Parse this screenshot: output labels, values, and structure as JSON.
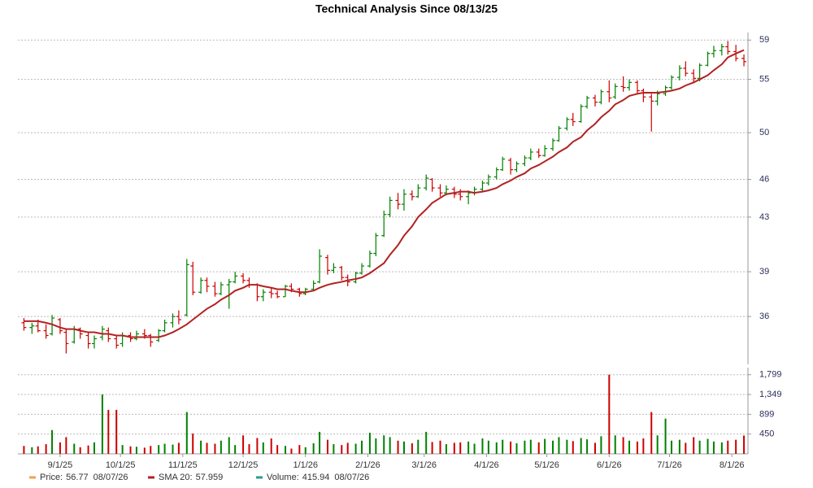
{
  "chart_data": {
    "type": "ohlc",
    "title": "Technical Analysis Since 08/13/25",
    "x": [
      "8/14/25",
      "8/18/25",
      "8/21/25",
      "8/25/25",
      "8/28/25",
      "9/1/25",
      "9/4/25",
      "9/8/25",
      "9/11/25",
      "9/15/25",
      "9/18/25",
      "9/22/25",
      "9/25/25",
      "9/29/25",
      "10/2/25",
      "10/6/25",
      "10/9/25",
      "10/13/25",
      "10/16/25",
      "10/20/25",
      "10/23/25",
      "10/27/25",
      "10/30/25",
      "11/3/25",
      "11/6/25",
      "11/10/25",
      "11/13/25",
      "11/17/25",
      "11/20/25",
      "11/24/25",
      "11/27/25",
      "12/1/25",
      "12/4/25",
      "12/8/25",
      "12/11/25",
      "12/15/25",
      "12/18/25",
      "12/22/25",
      "12/25/25",
      "12/29/25",
      "1/1/26",
      "1/5/26",
      "1/8/26",
      "1/12/26",
      "1/15/26",
      "1/19/26",
      "1/22/26",
      "1/26/26",
      "1/29/26",
      "2/2/26",
      "2/5/26",
      "2/9/26",
      "2/12/26",
      "2/16/26",
      "2/19/26",
      "2/23/26",
      "2/26/26",
      "3/2/26",
      "3/5/26",
      "3/9/26",
      "3/12/26",
      "3/16/26",
      "3/19/26",
      "3/23/26",
      "3/26/26",
      "3/30/26",
      "4/2/26",
      "4/6/26",
      "4/9/26",
      "4/13/26",
      "4/16/26",
      "4/20/26",
      "4/23/26",
      "4/27/26",
      "4/30/26",
      "5/4/26",
      "5/7/26",
      "5/11/26",
      "5/14/26",
      "5/18/26",
      "5/21/26",
      "5/25/26",
      "5/28/26",
      "6/1/26",
      "6/4/26",
      "6/8/26",
      "6/11/26",
      "6/15/26",
      "6/18/26",
      "6/22/26",
      "6/25/26",
      "6/29/26",
      "7/2/26",
      "7/6/26",
      "7/9/26",
      "7/13/26",
      "7/16/26",
      "7/20/26",
      "7/23/26",
      "7/27/26",
      "7/30/26",
      "8/3/26",
      "8/7/26"
    ],
    "xlim": [
      "8/11/25",
      "8/9/26"
    ],
    "xticks": [
      "9/1/25",
      "10/1/25",
      "11/1/25",
      "12/1/25",
      "1/1/26",
      "2/1/26",
      "3/1/26",
      "4/1/26",
      "5/1/26",
      "6/1/26",
      "7/1/26",
      "8/1/26"
    ],
    "open": [
      35.6,
      35.3,
      35.4,
      35.1,
      34.9,
      35.8,
      35.0,
      34.4,
      35.2,
      34.8,
      34.3,
      34.7,
      35.1,
      34.6,
      34.3,
      34.8,
      34.6,
      34.9,
      34.8,
      34.5,
      35.1,
      35.6,
      36.0,
      36.1,
      39.4,
      37.6,
      38.4,
      38.0,
      37.5,
      38.1,
      38.3,
      38.7,
      38.4,
      38.1,
      37.3,
      37.6,
      37.5,
      37.3,
      38.0,
      37.8,
      37.5,
      37.8,
      38.3,
      40.0,
      39.1,
      39.3,
      38.6,
      38.3,
      38.9,
      39.4,
      40.3,
      41.6,
      43.2,
      44.3,
      44.0,
      44.8,
      44.6,
      45.3,
      46.0,
      45.3,
      44.9,
      45.2,
      44.8,
      44.6,
      44.9,
      45.2,
      45.7,
      46.2,
      46.8,
      47.6,
      46.8,
      47.3,
      47.8,
      48.3,
      48.0,
      48.6,
      49.3,
      50.4,
      51.2,
      51.0,
      52.4,
      53.2,
      52.8,
      53.8,
      53.3,
      54.3,
      54.2,
      54.7,
      53.9,
      53.3,
      52.9,
      53.6,
      54.2,
      55.2,
      56.1,
      55.6,
      55.1,
      56.4,
      57.6,
      57.9,
      58.3,
      57.8,
      57.1
    ],
    "high": [
      35.9,
      35.6,
      35.8,
      35.5,
      36.1,
      35.9,
      35.2,
      35.4,
      35.3,
      35.0,
      34.8,
      35.4,
      35.3,
      34.8,
      35.0,
      35.0,
      35.1,
      35.2,
      34.9,
      35.2,
      35.8,
      36.2,
      36.4,
      39.9,
      39.7,
      38.6,
      38.6,
      38.3,
      38.3,
      38.5,
      39.0,
      38.9,
      38.6,
      38.2,
      37.8,
      37.9,
      37.7,
      38.1,
      38.2,
      37.9,
      37.9,
      38.4,
      40.6,
      40.2,
      39.6,
      39.4,
      38.8,
      39.0,
      39.6,
      40.5,
      41.8,
      43.5,
      44.6,
      44.9,
      45.2,
      45.1,
      45.6,
      46.4,
      46.1,
      45.6,
      45.5,
      45.4,
      45.2,
      45.1,
      45.4,
      45.9,
      46.4,
      47.0,
      47.9,
      47.8,
      47.5,
      48.0,
      48.6,
      48.6,
      48.9,
      49.5,
      50.6,
      51.4,
      51.8,
      52.6,
      53.4,
      53.5,
      54.0,
      54.9,
      54.6,
      55.3,
      55.0,
      54.9,
      54.1,
      53.6,
      53.9,
      54.4,
      55.4,
      56.4,
      56.8,
      56.0,
      56.6,
      57.8,
      58.4,
      58.6,
      58.9,
      58.5,
      57.5
    ],
    "low": [
      35.1,
      34.9,
      35.0,
      34.6,
      34.8,
      34.9,
      33.7,
      34.3,
      34.6,
      34.0,
      34.0,
      34.5,
      34.4,
      34.0,
      34.1,
      34.4,
      34.5,
      34.6,
      34.1,
      34.4,
      35.0,
      35.3,
      35.5,
      36.0,
      37.4,
      37.5,
      37.6,
      37.3,
      37.4,
      36.5,
      38.2,
      38.2,
      37.9,
      37.0,
      37.0,
      37.2,
      37.2,
      37.3,
      37.6,
      37.3,
      37.4,
      37.7,
      38.2,
      38.8,
      38.9,
      38.4,
      38.0,
      38.2,
      38.8,
      39.3,
      40.1,
      41.5,
      43.0,
      43.6,
      43.5,
      44.3,
      44.5,
      45.1,
      45.0,
      44.6,
      44.7,
      44.5,
      44.3,
      44.0,
      44.7,
      45.0,
      45.5,
      46.0,
      46.7,
      46.4,
      46.6,
      47.1,
      47.6,
      47.8,
      47.9,
      48.4,
      49.2,
      50.2,
      50.6,
      50.9,
      52.2,
      52.4,
      52.6,
      52.8,
      53.1,
      53.8,
      53.9,
      53.6,
      52.8,
      50.1,
      52.5,
      53.4,
      54.0,
      54.9,
      55.3,
      54.6,
      54.8,
      56.3,
      57.2,
      57.4,
      57.5,
      56.8,
      56.3
    ],
    "close": [
      35.3,
      35.4,
      35.1,
      34.8,
      35.9,
      35.1,
      34.3,
      35.2,
      34.9,
      34.3,
      34.6,
      35.2,
      34.6,
      34.2,
      34.8,
      34.6,
      34.9,
      34.8,
      34.4,
      35.1,
      35.6,
      36.0,
      35.8,
      39.5,
      37.6,
      38.4,
      38.0,
      37.5,
      38.1,
      38.3,
      38.7,
      38.4,
      38.1,
      37.3,
      37.6,
      37.5,
      37.3,
      38.0,
      37.8,
      37.5,
      37.8,
      38.2,
      40.1,
      39.1,
      39.3,
      38.6,
      38.3,
      38.9,
      39.4,
      40.3,
      41.6,
      43.2,
      44.3,
      44.0,
      44.8,
      44.6,
      45.3,
      46.1,
      45.3,
      44.9,
      45.2,
      44.8,
      44.6,
      44.9,
      45.2,
      45.7,
      46.2,
      46.8,
      47.7,
      46.8,
      47.3,
      47.8,
      48.3,
      48.0,
      48.6,
      49.3,
      50.4,
      51.2,
      51.0,
      52.4,
      53.2,
      52.8,
      53.8,
      53.2,
      54.3,
      54.2,
      54.7,
      53.9,
      53.3,
      52.9,
      53.6,
      54.2,
      55.2,
      56.1,
      55.6,
      55.1,
      56.4,
      57.6,
      57.9,
      58.3,
      57.8,
      57.1,
      56.77
    ],
    "up_color": "#008000",
    "down_color": "#cc0000",
    "ylim": [
      33.05,
      59.8
    ],
    "log_scale": true,
    "yticks": [
      36,
      39,
      43,
      46,
      50,
      55,
      59
    ],
    "grid": true,
    "price_name": "Price:",
    "price_color": "#f0a050",
    "last_date": "08/07/26",
    "sma": {
      "name": "SMA 20:",
      "color": "#b22222",
      "values": [
        35.7,
        35.7,
        35.7,
        35.6,
        35.5,
        35.3,
        35.2,
        35.2,
        35.1,
        35.0,
        35.0,
        34.9,
        34.9,
        34.8,
        34.8,
        34.7,
        34.7,
        34.7,
        34.7,
        34.7,
        34.8,
        35.0,
        35.2,
        35.5,
        35.8,
        36.2,
        36.5,
        36.8,
        37.1,
        37.4,
        37.7,
        37.9,
        38.1,
        38.1,
        38.0,
        37.9,
        37.8,
        37.8,
        37.7,
        37.6,
        37.6,
        37.7,
        37.9,
        38.1,
        38.2,
        38.3,
        38.4,
        38.5,
        38.6,
        38.9,
        39.2,
        39.6,
        40.2,
        40.9,
        41.6,
        42.3,
        43.0,
        43.6,
        44.1,
        44.5,
        44.8,
        44.9,
        45.0,
        45.0,
        44.9,
        45.0,
        45.1,
        45.3,
        45.6,
        45.9,
        46.2,
        46.5,
        46.9,
        47.2,
        47.5,
        47.9,
        48.3,
        48.7,
        49.2,
        49.6,
        50.2,
        50.8,
        51.4,
        52.0,
        52.6,
        53.0,
        53.4,
        53.6,
        53.7,
        53.7,
        53.7,
        53.8,
        53.9,
        54.1,
        54.4,
        54.7,
        55.0,
        55.4,
        55.9,
        56.5,
        57.2,
        57.6,
        57.959
      ]
    },
    "volume": {
      "name": "Volume:",
      "color": "#2a9d8f",
      "values": [
        180,
        150,
        170,
        220,
        540,
        260,
        380,
        230,
        150,
        190,
        260,
        1350,
        1000,
        1000,
        200,
        170,
        160,
        140,
        180,
        200,
        230,
        210,
        250,
        950,
        460,
        300,
        250,
        230,
        300,
        380,
        200,
        420,
        220,
        360,
        260,
        350,
        200,
        180,
        120,
        200,
        150,
        240,
        500,
        320,
        220,
        200,
        250,
        230,
        300,
        480,
        350,
        420,
        380,
        300,
        280,
        240,
        320,
        500,
        270,
        300,
        220,
        250,
        260,
        280,
        230,
        350,
        300,
        260,
        320,
        280,
        240,
        300,
        320,
        260,
        340,
        300,
        380,
        320,
        290,
        360,
        330,
        250,
        400,
        1799,
        420,
        380,
        300,
        280,
        350,
        950,
        420,
        800,
        300,
        320,
        250,
        380,
        300,
        340,
        280,
        260,
        300,
        320,
        415.94
      ],
      "ylim": [
        0,
        1960
      ],
      "yticks": [
        450,
        899,
        {
          "value": 1349,
          "label": "1,349"
        },
        {
          "value": 1799,
          "label": "1,799"
        }
      ]
    }
  }
}
